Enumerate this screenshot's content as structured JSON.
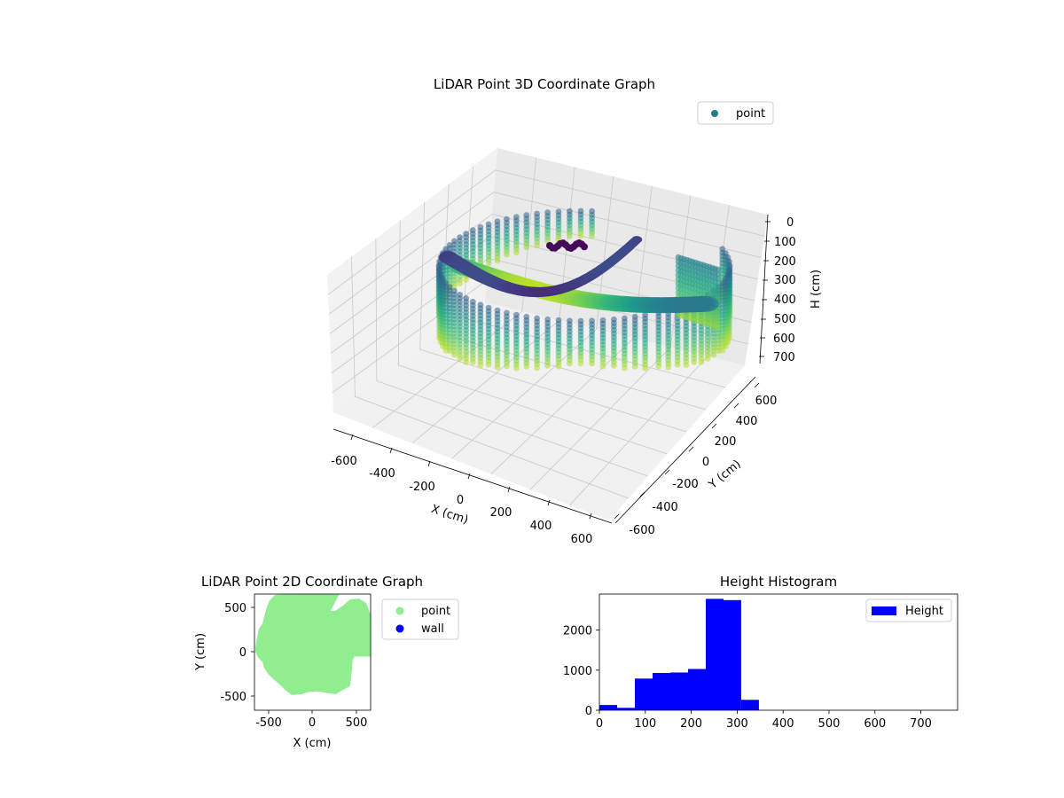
{
  "chart_data": [
    {
      "type": "scatter",
      "projection": "3d",
      "title": "LiDAR Point 3D Coordinate Graph",
      "xlabel": "X (cm)",
      "ylabel": "Y (cm)",
      "zlabel": "H (cm)",
      "xticks": [
        "-600",
        "-400",
        "-200",
        "0",
        "200",
        "400",
        "600"
      ],
      "yticks": [
        "-600",
        "-400",
        "-200",
        "0",
        "200",
        "400",
        "600"
      ],
      "zticks": [
        "0",
        "100",
        "200",
        "300",
        "400",
        "500",
        "600",
        "700"
      ],
      "xlim": [
        -650,
        650
      ],
      "ylim": [
        -650,
        650
      ],
      "zlim": [
        760,
        0
      ],
      "colormap": "viridis",
      "legend": {
        "position": "top-right",
        "entries": [
          {
            "label": "point",
            "color": "#2a7b8e"
          }
        ]
      },
      "grid": true
    },
    {
      "type": "scatter",
      "title": "LiDAR Point 2D Coordinate Graph",
      "xlabel": "X (cm)",
      "ylabel": "Y (cm)",
      "xticks": [
        "-500",
        "0",
        "500"
      ],
      "yticks": [
        "500",
        "0",
        "-500"
      ],
      "xlim": [
        -650,
        650
      ],
      "ylim": [
        -650,
        650
      ],
      "series": [
        {
          "name": "point",
          "color": "#90ee90"
        },
        {
          "name": "wall",
          "color": "#0000ff"
        }
      ],
      "legend": {
        "position": "outside-right"
      }
    },
    {
      "type": "bar",
      "subtype": "histogram",
      "title": "Height Histogram",
      "xticks": [
        "0",
        "100",
        "200",
        "300",
        "400",
        "500",
        "600",
        "700"
      ],
      "yticks": [
        "0",
        "1000",
        "2000"
      ],
      "xlim": [
        0,
        780
      ],
      "ylim": [
        0,
        2900
      ],
      "bin_width": 38.6,
      "bin_starts": [
        0,
        38.6,
        77.2,
        115.8,
        154.4,
        193.0,
        231.6,
        270.2,
        308.8,
        347.4
      ],
      "values": [
        130,
        60,
        790,
        930,
        940,
        1030,
        2780,
        2750,
        260,
        0
      ],
      "color": "#0000ff",
      "series": [
        {
          "name": "Height",
          "color": "#0000ff"
        }
      ],
      "legend": {
        "position": "top-right"
      }
    }
  ]
}
